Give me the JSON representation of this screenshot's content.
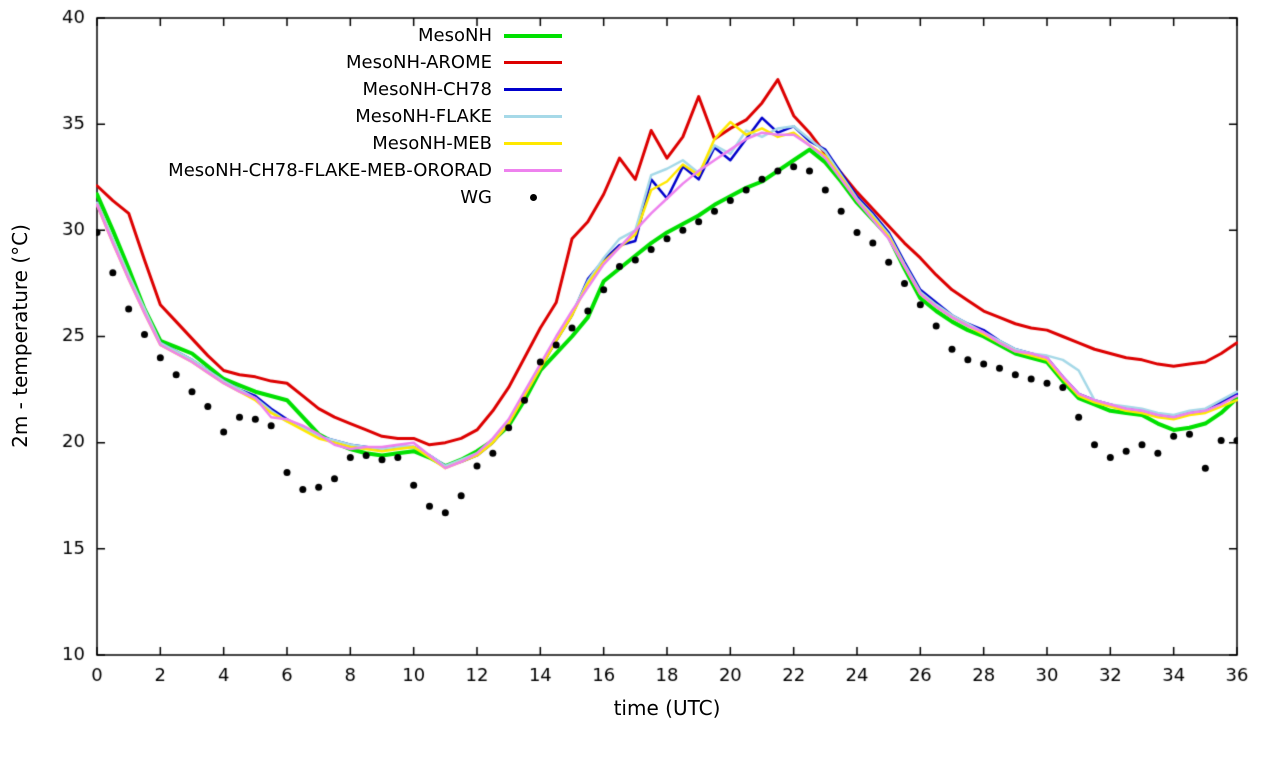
{
  "chart_data": {
    "type": "line",
    "title": "",
    "xlabel": "time (UTC)",
    "ylabel": "2m - temperature (°C)",
    "xlim": [
      0,
      36
    ],
    "ylim": [
      10,
      40
    ],
    "xticks": [
      0,
      2,
      4,
      6,
      8,
      10,
      12,
      14,
      16,
      18,
      20,
      22,
      24,
      26,
      28,
      30,
      32,
      34,
      36
    ],
    "yticks": [
      10,
      15,
      20,
      25,
      30,
      35,
      40
    ],
    "grid": false,
    "legend_position": "top-center-inside",
    "x": {
      "start": 0,
      "step": 0.5
    },
    "series": [
      {
        "name": "MesoNH",
        "type": "line",
        "color": "#00e000",
        "width": 4,
        "values": [
          31.7,
          30.0,
          28.2,
          26.3,
          24.8,
          24.5,
          24.2,
          23.6,
          23.0,
          22.7,
          22.4,
          22.2,
          22.0,
          21.2,
          20.4,
          20.0,
          19.7,
          19.5,
          19.4,
          19.5,
          19.6,
          19.3,
          18.9,
          19.2,
          19.6,
          20.1,
          20.8,
          22.0,
          23.4,
          24.2,
          25.0,
          25.9,
          27.6,
          28.2,
          28.8,
          29.4,
          29.9,
          30.3,
          30.7,
          31.2,
          31.6,
          32.0,
          32.3,
          32.8,
          33.3,
          33.8,
          33.2,
          32.3,
          31.3,
          30.5,
          29.7,
          28.2,
          26.8,
          26.2,
          25.7,
          25.3,
          25.0,
          24.6,
          24.2,
          24.0,
          23.8,
          22.9,
          22.1,
          21.8,
          21.5,
          21.4,
          21.3,
          20.9,
          20.6,
          20.7,
          20.9,
          21.4,
          22.1
        ]
      },
      {
        "name": "MesoNH-AROME",
        "type": "line",
        "color": "#dd0000",
        "width": 3,
        "values": [
          32.1,
          31.4,
          30.8,
          28.6,
          26.5,
          25.7,
          24.9,
          24.1,
          23.4,
          23.2,
          23.1,
          22.9,
          22.8,
          22.2,
          21.6,
          21.2,
          20.9,
          20.6,
          20.3,
          20.2,
          20.2,
          19.9,
          20.0,
          20.2,
          20.6,
          21.5,
          22.6,
          24.0,
          25.4,
          26.6,
          29.6,
          30.4,
          31.7,
          33.4,
          32.4,
          34.7,
          33.4,
          34.4,
          36.3,
          34.3,
          34.8,
          35.2,
          36.0,
          37.1,
          35.4,
          34.6,
          33.6,
          32.7,
          31.8,
          31.0,
          30.2,
          29.4,
          28.7,
          27.9,
          27.2,
          26.7,
          26.2,
          25.9,
          25.6,
          25.4,
          25.3,
          25.0,
          24.7,
          24.4,
          24.2,
          24.0,
          23.9,
          23.7,
          23.6,
          23.7,
          23.8,
          24.2,
          24.7
        ]
      },
      {
        "name": "MesoNH-CH78",
        "type": "line",
        "color": "#0000cc",
        "width": 2.5,
        "values": [
          31.3,
          29.5,
          27.8,
          26.2,
          24.7,
          24.3,
          23.9,
          23.4,
          22.9,
          22.5,
          22.2,
          21.6,
          21.1,
          20.7,
          20.3,
          20.1,
          19.9,
          19.8,
          19.7,
          19.8,
          19.8,
          19.4,
          18.9,
          19.1,
          19.4,
          20.0,
          20.9,
          22.2,
          23.5,
          24.8,
          26.0,
          27.7,
          28.6,
          29.3,
          29.5,
          32.4,
          31.5,
          33.0,
          32.4,
          33.9,
          33.3,
          34.3,
          35.3,
          34.6,
          34.9,
          34.2,
          33.8,
          32.7,
          31.6,
          30.8,
          29.9,
          28.5,
          27.2,
          26.6,
          26.0,
          25.6,
          25.3,
          24.8,
          24.4,
          24.2,
          24.0,
          23.1,
          22.3,
          22.0,
          21.8,
          21.6,
          21.5,
          21.3,
          21.2,
          21.4,
          21.5,
          21.9,
          22.3
        ]
      },
      {
        "name": "MesoNH-FLAKE",
        "type": "line",
        "color": "#a6d9e8",
        "width": 2.5,
        "values": [
          31.3,
          29.6,
          27.9,
          26.3,
          24.7,
          24.3,
          23.9,
          23.4,
          22.9,
          22.5,
          22.1,
          21.5,
          21.0,
          20.7,
          20.3,
          20.1,
          19.9,
          19.8,
          19.7,
          19.8,
          19.8,
          19.4,
          18.9,
          19.2,
          19.5,
          20.1,
          21.0,
          22.3,
          23.6,
          24.9,
          26.1,
          27.6,
          28.7,
          29.6,
          30.0,
          32.6,
          32.9,
          33.3,
          32.7,
          34.0,
          33.6,
          34.7,
          34.4,
          34.8,
          34.9,
          34.3,
          33.7,
          32.6,
          31.5,
          30.7,
          29.8,
          28.4,
          27.1,
          26.5,
          26.0,
          25.6,
          25.2,
          24.8,
          24.4,
          24.2,
          24.1,
          23.9,
          23.4,
          22.0,
          21.8,
          21.7,
          21.6,
          21.4,
          21.3,
          21.5,
          21.6,
          22.0,
          22.4
        ]
      },
      {
        "name": "MesoNH-MEB",
        "type": "line",
        "color": "#ffe800",
        "width": 2.5,
        "values": [
          31.2,
          29.4,
          27.7,
          26.1,
          24.6,
          24.2,
          23.8,
          23.3,
          22.8,
          22.4,
          22.0,
          21.4,
          21.0,
          20.6,
          20.2,
          20.0,
          19.8,
          19.7,
          19.6,
          19.7,
          19.8,
          19.3,
          18.8,
          19.1,
          19.4,
          20.0,
          20.9,
          22.2,
          23.5,
          24.8,
          26.0,
          27.5,
          28.5,
          29.2,
          29.8,
          31.9,
          32.3,
          33.1,
          32.6,
          34.3,
          35.1,
          34.5,
          34.8,
          34.4,
          34.6,
          34.0,
          33.5,
          32.5,
          31.4,
          30.6,
          29.7,
          28.3,
          27.0,
          26.4,
          25.9,
          25.5,
          25.1,
          24.7,
          24.3,
          24.1,
          23.9,
          23.0,
          22.2,
          21.9,
          21.7,
          21.5,
          21.4,
          21.2,
          21.1,
          21.3,
          21.4,
          21.7,
          22.0
        ]
      },
      {
        "name": "MesoNH-CH78-FLAKE-MEB-ORORAD",
        "type": "line",
        "color": "#ee82ee",
        "width": 2.5,
        "values": [
          31.2,
          29.4,
          27.7,
          26.1,
          24.6,
          24.2,
          23.8,
          23.3,
          22.8,
          22.4,
          22.1,
          21.2,
          21.1,
          20.8,
          20.4,
          19.9,
          19.7,
          19.8,
          19.8,
          19.9,
          20.0,
          19.4,
          18.8,
          19.1,
          19.5,
          20.2,
          21.1,
          22.4,
          23.7,
          25.0,
          26.2,
          27.3,
          28.4,
          29.2,
          30.0,
          30.8,
          31.5,
          32.2,
          32.8,
          33.3,
          33.8,
          34.3,
          34.6,
          34.5,
          34.5,
          34.0,
          33.4,
          32.4,
          31.4,
          30.5,
          29.6,
          28.3,
          27.0,
          26.4,
          25.9,
          25.5,
          25.2,
          24.7,
          24.3,
          24.2,
          24.0,
          23.1,
          22.3,
          22.0,
          21.8,
          21.6,
          21.5,
          21.3,
          21.2,
          21.4,
          21.5,
          21.8,
          22.2
        ]
      },
      {
        "name": "WG",
        "type": "points",
        "color": "#000000",
        "size": 3.5,
        "values": [
          29.9,
          28.0,
          26.3,
          25.1,
          24.0,
          23.2,
          22.4,
          21.7,
          20.5,
          21.2,
          21.1,
          20.8,
          18.6,
          17.8,
          17.9,
          18.3,
          19.3,
          19.4,
          19.2,
          19.3,
          18.0,
          17.0,
          16.7,
          17.5,
          18.9,
          19.5,
          20.7,
          22.0,
          23.8,
          24.6,
          25.4,
          26.2,
          27.2,
          28.3,
          28.6,
          29.1,
          29.6,
          30.0,
          30.4,
          30.9,
          31.4,
          31.9,
          32.4,
          32.8,
          33.0,
          32.8,
          31.9,
          30.9,
          29.9,
          29.4,
          28.5,
          27.5,
          26.5,
          25.5,
          24.4,
          23.9,
          23.7,
          23.5,
          23.2,
          23.0,
          22.8,
          22.6,
          21.2,
          19.9,
          19.3,
          19.6,
          19.9,
          19.5,
          20.3,
          20.4,
          18.8,
          20.1,
          20.1
        ]
      }
    ]
  }
}
